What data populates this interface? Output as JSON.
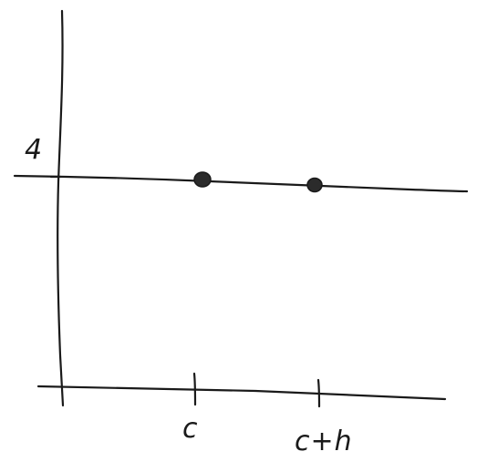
{
  "diagram": {
    "y_axis_value_label": "4",
    "x_axis_tick_labels": [
      "c",
      "c+h"
    ],
    "colors": {
      "ink": "#1a1a1a",
      "background": "#ffffff"
    }
  }
}
